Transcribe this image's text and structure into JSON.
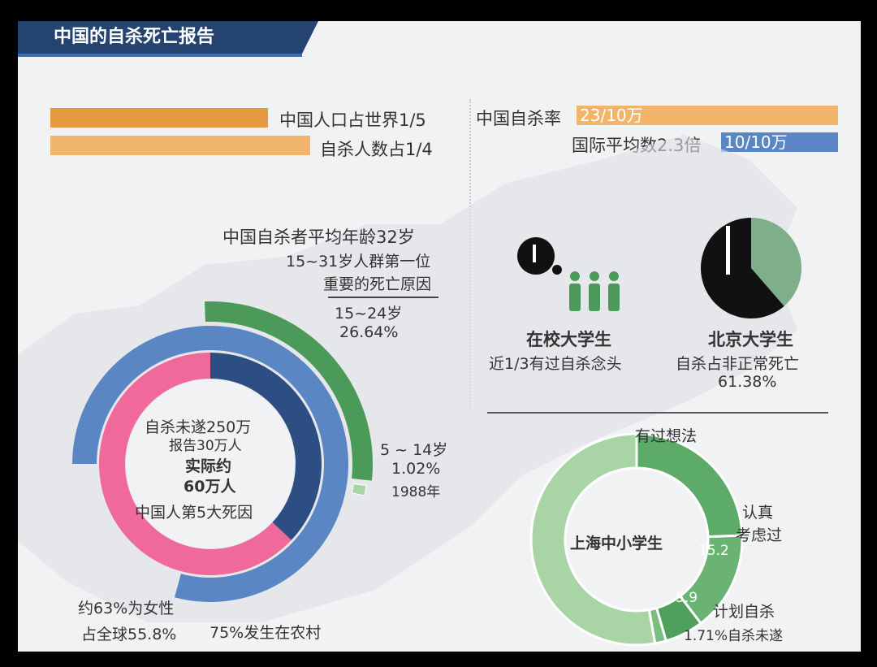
{
  "title": "中国的自杀死亡报告",
  "top_left": {
    "population_label": "中国人口占世界1/5",
    "suicide_label": "自杀人数占1/4"
  },
  "top_right": {
    "rate_label": "中国自杀率",
    "rate_value": "23/10万",
    "intl_label": "国际平均数2.3倍",
    "intl_value": "10/10万"
  },
  "age_note": {
    "line1": "中国自杀者平均年龄32岁",
    "line2": "15~31岁人群第一位",
    "line3": "重要的死亡原因"
  },
  "donut_center": {
    "line1": "自杀未遂250万",
    "line2": "报告30万人",
    "line3": "实际约",
    "line4": "60万人",
    "line5": "中国人第5大死因"
  },
  "labels": {
    "age_15_24_range": "15~24岁",
    "age_15_24_pct": "26.64%",
    "age_5_14_range": "5 ~ 14岁",
    "age_5_14_pct": "1.02%",
    "age_5_14_year": "1988年",
    "female_line1": "约63%为女性",
    "female_line2": "占全球55.8%",
    "rural": "75%发生在农村"
  },
  "college": {
    "title": "在校大学生",
    "desc": "近1/3有过自杀念头"
  },
  "pku": {
    "title": "北京大学生",
    "desc": "自杀占非正常死亡",
    "pct": "61.38%"
  },
  "shanghai": {
    "center": "上海中小学生",
    "had_thought": "有过想法",
    "serious_1": "认真",
    "serious_2": "考虑过",
    "plan": "计划自杀",
    "attempt": "1.71%自杀未遂",
    "val_serious": "15.2",
    "val_plan": "5.9"
  },
  "colors": {
    "orange": "#e59b3f",
    "orange_light": "#f0b56a",
    "blue": "#5a87c4",
    "navy": "#2d4e82",
    "pink": "#ef6a9a",
    "green": "#4c9a5a",
    "green_light": "#a9d4a5",
    "pie_green": "#7fae8b"
  },
  "chart_data": [
    {
      "type": "bar",
      "categories": [
        "中国人口占世界1/5",
        "自杀人数占1/4"
      ],
      "values": [
        0.2,
        0.25
      ]
    },
    {
      "type": "bar",
      "categories": [
        "中国自杀率",
        "国际平均数2.3倍"
      ],
      "values": [
        23,
        10
      ],
      "value_labels": [
        "23/10万",
        "10/10万"
      ]
    },
    {
      "type": "pie",
      "name": "age_ring",
      "categories": [
        "15~24岁",
        "5 ~ 14岁"
      ],
      "values": [
        26.64,
        1.02
      ]
    },
    {
      "type": "pie",
      "name": "gender_ring",
      "categories": [
        "约63%为女性"
      ],
      "values": [
        63
      ]
    },
    {
      "type": "pie",
      "name": "pku",
      "categories": [
        "自杀占非正常死亡"
      ],
      "values": [
        61.38
      ]
    },
    {
      "type": "pie",
      "name": "shanghai",
      "categories": [
        "有过想法",
        "认真考虑过",
        "计划自杀",
        "自杀未遂"
      ],
      "values": [
        24.4,
        15.2,
        5.9,
        1.71
      ]
    }
  ]
}
